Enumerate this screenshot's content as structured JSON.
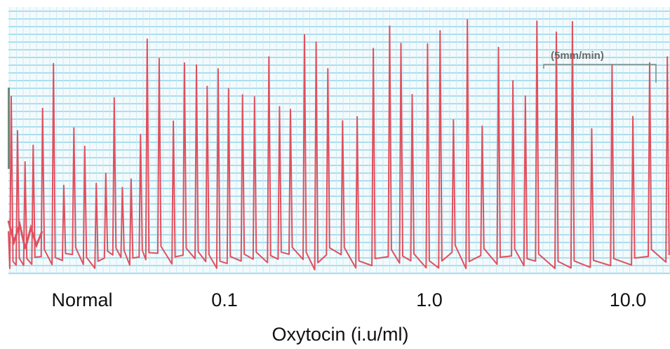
{
  "scale_label": "(5mm/min)",
  "conditions": [
    "Normal",
    "0.1",
    "1.0",
    "10.0"
  ],
  "axis_title": "Oxytocin (i.u/ml)"
}
